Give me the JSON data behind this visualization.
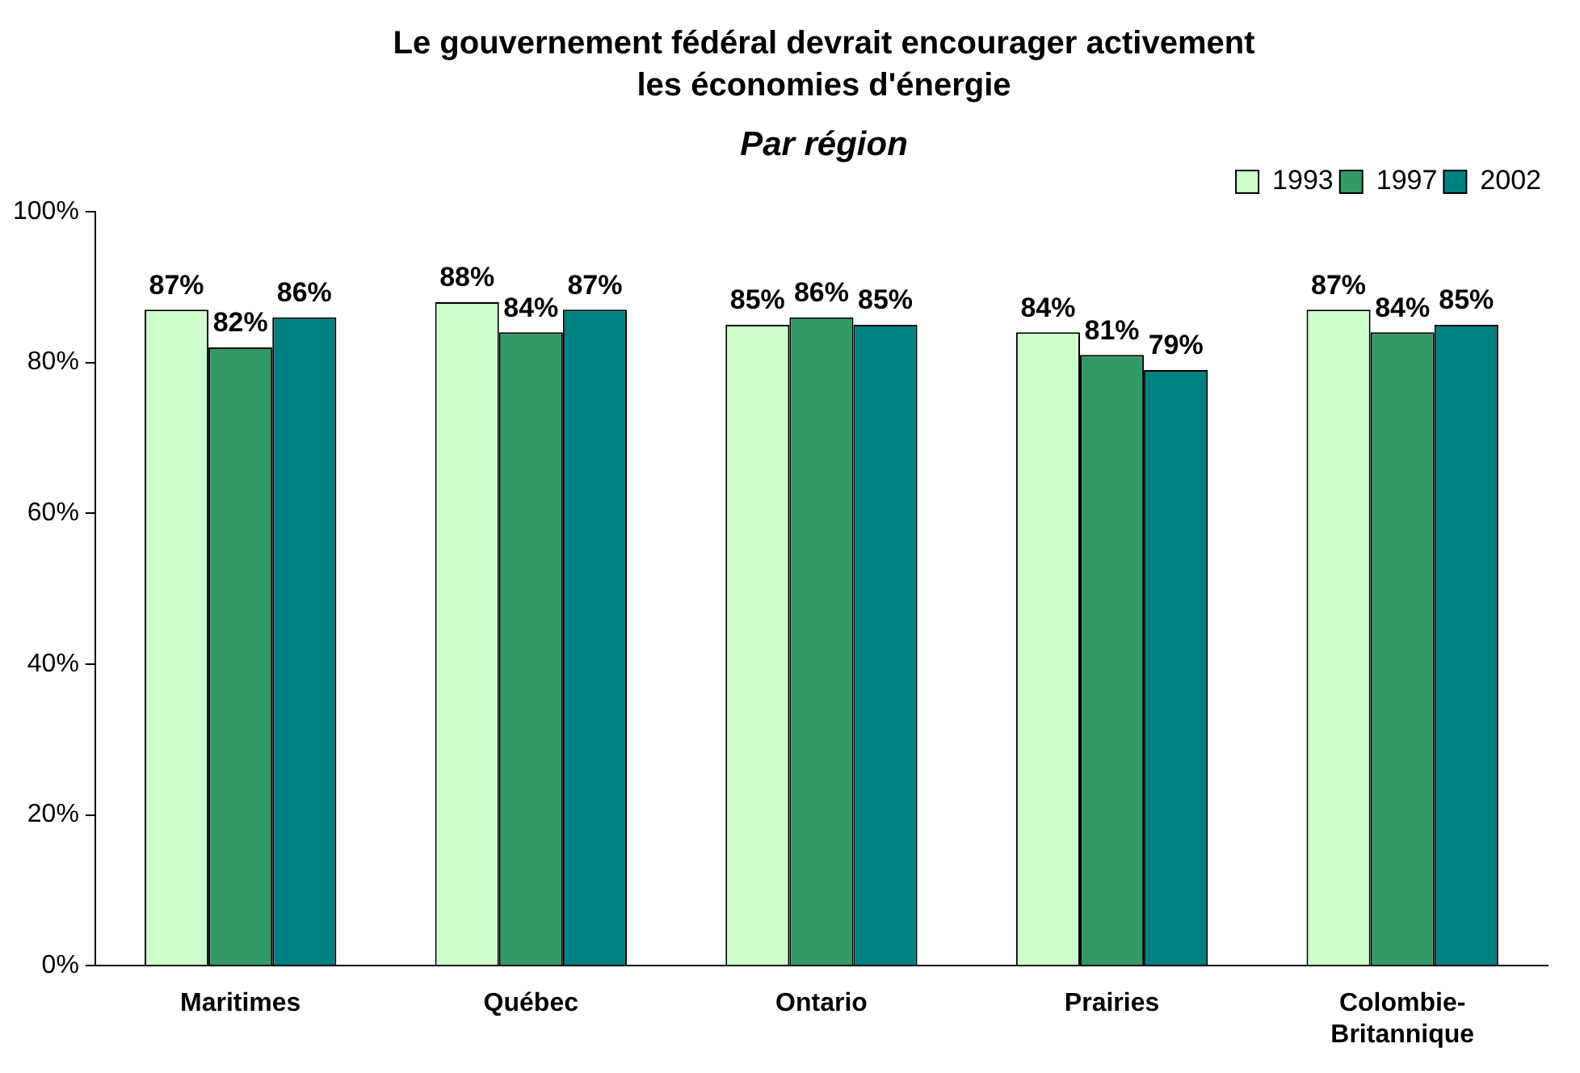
{
  "chart_data": {
    "type": "bar",
    "title": "Le gouvernement fédéral devrait encourager activement les économies d'énergie",
    "subtitle": "Par région",
    "categories": [
      "Maritimes",
      "Québec",
      "Ontario",
      "Prairies",
      "Colombie-Britannique"
    ],
    "series": [
      {
        "name": "1993",
        "color": "#ccffcc",
        "values": [
          87,
          88,
          85,
          84,
          87
        ],
        "value_labels": [
          "87%",
          "88%",
          "85%",
          "84%",
          "87%"
        ]
      },
      {
        "name": "1997",
        "color": "#339966",
        "values": [
          82,
          84,
          86,
          81,
          84
        ],
        "value_labels": [
          "82%",
          "84%",
          "86%",
          "81%",
          "84%"
        ]
      },
      {
        "name": "2002",
        "color": "#008080",
        "values": [
          86,
          87,
          85,
          79,
          85
        ],
        "value_labels": [
          "86%",
          "87%",
          "85%",
          "79%",
          "85%"
        ]
      }
    ],
    "ylim": [
      0,
      100
    ],
    "yticks": [
      {
        "value": 0,
        "label": "0%"
      },
      {
        "value": 20,
        "label": "20%"
      },
      {
        "value": 40,
        "label": "40%"
      },
      {
        "value": 60,
        "label": "60%"
      },
      {
        "value": 80,
        "label": "80%"
      },
      {
        "value": 100,
        "label": "100%"
      }
    ],
    "grid": false,
    "legend": "top right"
  }
}
